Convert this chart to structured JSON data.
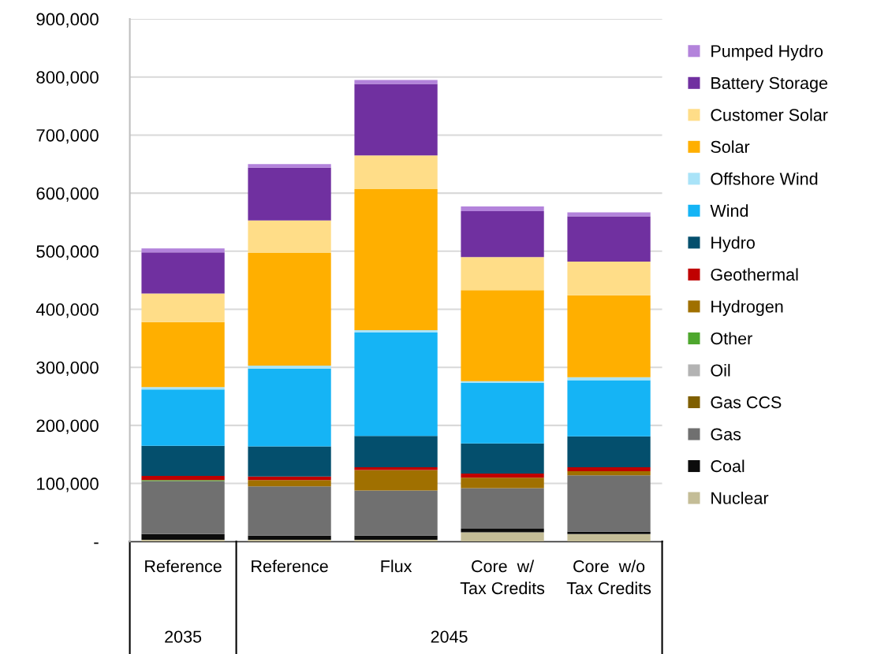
{
  "chart_data": {
    "type": "bar",
    "stacked": true,
    "categories": [
      "Reference",
      "Reference",
      "Flux",
      "Core  w/\nTax Credits",
      "Core  w/o\nTax Credits"
    ],
    "annotations": [
      "2035",
      "2045"
    ],
    "ylim": [
      0,
      900000
    ],
    "yticks": [
      {
        "value": 0,
        "label": "-"
      },
      {
        "value": 100000,
        "label": "100,000"
      },
      {
        "value": 200000,
        "label": "200,000"
      },
      {
        "value": 300000,
        "label": "300,000"
      },
      {
        "value": 400000,
        "label": "400,000"
      },
      {
        "value": 500000,
        "label": "500,000"
      },
      {
        "value": 600000,
        "label": "600,000"
      },
      {
        "value": 700000,
        "label": "700,000"
      },
      {
        "value": 800000,
        "label": "800,000"
      },
      {
        "value": 900000,
        "label": "900,000"
      }
    ],
    "grid": "y",
    "legend": "right",
    "series": [
      {
        "name": "Nuclear",
        "color": "#c4bd97",
        "values": [
          3000,
          3000,
          3000,
          16000,
          13000
        ]
      },
      {
        "name": "Coal",
        "color": "#0c0c0c",
        "values": [
          10000,
          7000,
          7000,
          6000,
          4000
        ]
      },
      {
        "name": "Gas",
        "color": "#707070",
        "values": [
          91000,
          85000,
          78000,
          70000,
          97000
        ]
      },
      {
        "name": "Gas CCS",
        "color": "#7f5f00",
        "values": [
          0,
          0,
          0,
          0,
          0
        ]
      },
      {
        "name": "Oil",
        "color": "#b3b3b3",
        "values": [
          0,
          0,
          0,
          0,
          0
        ]
      },
      {
        "name": "Other",
        "color": "#4ea72e",
        "values": [
          2000,
          0,
          0,
          0,
          0
        ]
      },
      {
        "name": "Hydrogen",
        "color": "#a07000",
        "values": [
          0,
          11000,
          35000,
          18000,
          7000
        ]
      },
      {
        "name": "Geothermal",
        "color": "#c00000",
        "values": [
          7000,
          6000,
          5000,
          7000,
          7000
        ]
      },
      {
        "name": "Hydro",
        "color": "#044f6d",
        "values": [
          52000,
          52000,
          54000,
          52000,
          53000
        ]
      },
      {
        "name": "Wind",
        "color": "#15b4f5",
        "values": [
          97000,
          134000,
          178000,
          104000,
          97000
        ]
      },
      {
        "name": "Offshore Wind",
        "color": "#a9e3f8",
        "values": [
          4000,
          5000,
          4000,
          3000,
          5000
        ]
      },
      {
        "name": "Solar",
        "color": "#ffaf00",
        "values": [
          112000,
          194000,
          243000,
          157000,
          141000
        ]
      },
      {
        "name": "Customer Solar",
        "color": "#ffdd88",
        "values": [
          49000,
          56000,
          58000,
          57000,
          58000
        ]
      },
      {
        "name": "Battery Storage",
        "color": "#7030a0",
        "values": [
          71000,
          91000,
          123000,
          79000,
          78000
        ]
      },
      {
        "name": "Pumped Hydro",
        "color": "#b383db",
        "values": [
          7000,
          6000,
          7000,
          8000,
          7000
        ]
      }
    ]
  }
}
